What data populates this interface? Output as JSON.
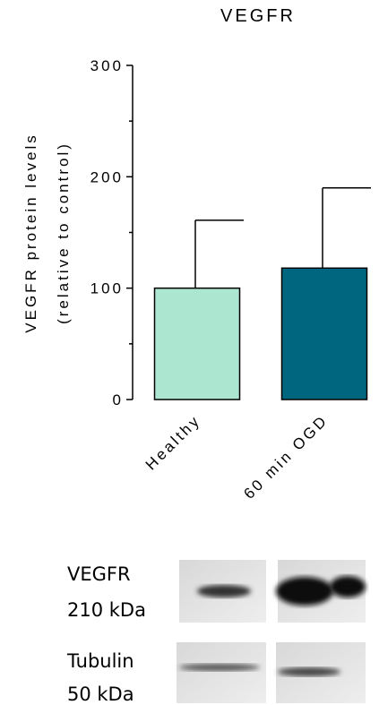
{
  "chart_data": {
    "type": "bar",
    "title": "VEGFR",
    "y_label": [
      "VEGFR protein levels",
      "(relative to control)"
    ],
    "categories": [
      "Healthy",
      "60 min OGD"
    ],
    "values": [
      100,
      118
    ],
    "errors": [
      61,
      72
    ],
    "colors": [
      "#ace6d0",
      "#006680"
    ],
    "ylim": [
      0,
      300
    ],
    "yticks": [
      0,
      100,
      200,
      300
    ],
    "yticks_minor": [
      50,
      150,
      250
    ]
  },
  "blot": {
    "rows": [
      {
        "name": "VEGFR",
        "size": "210 kDa"
      },
      {
        "name": "Tubulin",
        "size": "50 kDa"
      }
    ]
  }
}
